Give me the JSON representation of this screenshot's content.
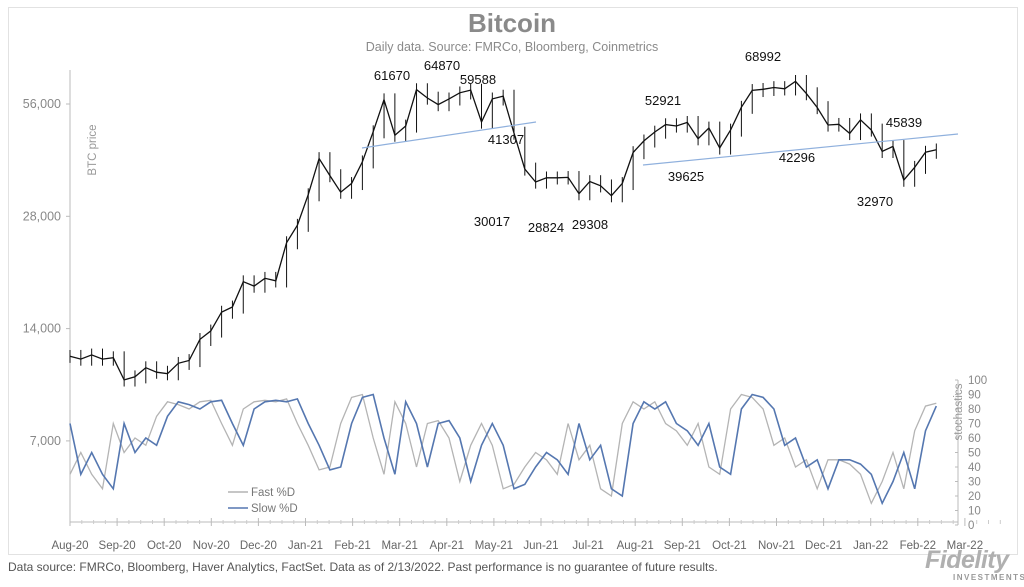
{
  "chart_data": {
    "type": "line",
    "title": "Bitcoin",
    "subtitle": "Daily data.  Source: FMRCo, Bloomberg, Coinmetrics",
    "ylabel": "BTC price",
    "y2label": "stochastics",
    "yscale": "log2",
    "yticks": [
      "56,000",
      "28,000",
      "14,000",
      "7,000"
    ],
    "ytick_values": [
      56000,
      28000,
      14000,
      7000
    ],
    "y2ticks": [
      0,
      10,
      20,
      30,
      40,
      50,
      60,
      70,
      80,
      90,
      100
    ],
    "y2lim": [
      0,
      100
    ],
    "xticks": [
      "Aug-20",
      "Sep-20",
      "Oct-20",
      "Nov-20",
      "Dec-20",
      "Jan-21",
      "Feb-21",
      "Mar-21",
      "Apr-21",
      "May-21",
      "Jun-21",
      "Jul-21",
      "Aug-21",
      "Sep-21",
      "Oct-21",
      "Nov-21",
      "Dec-21",
      "Jan-22",
      "Feb-22",
      "Mar-22"
    ],
    "x": [
      "2020-08-01",
      "2020-08-08",
      "2020-08-15",
      "2020-08-22",
      "2020-08-29",
      "2020-09-05",
      "2020-09-12",
      "2020-09-19",
      "2020-09-26",
      "2020-10-03",
      "2020-10-10",
      "2020-10-17",
      "2020-10-24",
      "2020-10-31",
      "2020-11-07",
      "2020-11-14",
      "2020-11-21",
      "2020-11-28",
      "2020-12-05",
      "2020-12-12",
      "2020-12-19",
      "2020-12-26",
      "2021-01-02",
      "2021-01-09",
      "2021-01-16",
      "2021-01-23",
      "2021-01-30",
      "2021-02-06",
      "2021-02-13",
      "2021-02-20",
      "2021-02-27",
      "2021-03-06",
      "2021-03-13",
      "2021-03-20",
      "2021-03-27",
      "2021-04-03",
      "2021-04-10",
      "2021-04-17",
      "2021-04-24",
      "2021-05-01",
      "2021-05-08",
      "2021-05-15",
      "2021-05-22",
      "2021-05-29",
      "2021-06-05",
      "2021-06-12",
      "2021-06-19",
      "2021-06-26",
      "2021-07-03",
      "2021-07-10",
      "2021-07-17",
      "2021-07-24",
      "2021-07-31",
      "2021-08-07",
      "2021-08-14",
      "2021-08-21",
      "2021-08-28",
      "2021-09-04",
      "2021-09-11",
      "2021-09-18",
      "2021-09-25",
      "2021-10-02",
      "2021-10-09",
      "2021-10-16",
      "2021-10-23",
      "2021-10-30",
      "2021-11-06",
      "2021-11-13",
      "2021-11-20",
      "2021-11-27",
      "2021-12-04",
      "2021-12-11",
      "2021-12-18",
      "2021-12-25",
      "2022-01-01",
      "2022-01-08",
      "2022-01-15",
      "2022-01-22",
      "2022-01-29",
      "2022-02-05",
      "2022-02-12"
    ],
    "series": [
      {
        "key": "price",
        "values": [
          11800,
          11600,
          11900,
          11600,
          11700,
          10200,
          10400,
          11000,
          10700,
          10600,
          11300,
          11500,
          13100,
          13800,
          15500,
          16000,
          18700,
          18200,
          19100,
          18800,
          23800,
          26500,
          32000,
          40000,
          36000,
          32500,
          34300,
          39200,
          47200,
          57500,
          46200,
          48900,
          61200,
          58100,
          55800,
          57800,
          60000,
          61000,
          50100,
          57800,
          58800,
          46800,
          37500,
          34600,
          35500,
          35500,
          35600,
          32200,
          34700,
          33800,
          31800,
          34300,
          41500,
          44600,
          47100,
          49300,
          48900,
          50000,
          45200,
          48300,
          42700,
          47700,
          54900,
          60900,
          61300,
          62000,
          61500,
          64400,
          59700,
          54800,
          49200,
          49400,
          46700,
          50800,
          47700,
          41800,
          43100,
          35000,
          37900,
          41600,
          42200
        ],
        "color": "#111111"
      },
      {
        "key": "fast",
        "name": "Fast %D",
        "values": [
          35,
          50,
          35,
          25,
          70,
          50,
          60,
          55,
          75,
          85,
          83,
          80,
          85,
          86,
          70,
          55,
          80,
          85,
          86,
          85,
          87,
          70,
          55,
          38,
          40,
          70,
          88,
          90,
          60,
          35,
          85,
          70,
          40,
          70,
          72,
          60,
          30,
          55,
          70,
          55,
          25,
          28,
          40,
          50,
          45,
          35,
          70,
          45,
          55,
          25,
          20,
          70,
          85,
          80,
          85,
          70,
          65,
          55,
          70,
          40,
          35,
          80,
          90,
          88,
          80,
          55,
          60,
          40,
          45,
          25,
          45,
          45,
          42,
          35,
          15,
          30,
          50,
          25,
          65,
          82,
          84
        ],
        "color": "#b4b4b4"
      },
      {
        "key": "slow",
        "name": "Slow %D",
        "values": [
          70,
          35,
          50,
          35,
          25,
          70,
          50,
          60,
          55,
          75,
          85,
          83,
          80,
          85,
          86,
          70,
          55,
          80,
          85,
          86,
          85,
          87,
          70,
          55,
          38,
          40,
          70,
          88,
          90,
          60,
          35,
          85,
          70,
          40,
          70,
          72,
          60,
          30,
          55,
          70,
          55,
          25,
          28,
          40,
          50,
          45,
          35,
          70,
          45,
          55,
          25,
          20,
          70,
          85,
          80,
          85,
          70,
          65,
          55,
          70,
          40,
          35,
          80,
          90,
          88,
          80,
          55,
          60,
          40,
          45,
          25,
          45,
          45,
          42,
          35,
          15,
          30,
          50,
          25,
          65,
          82
        ],
        "color": "#5577b0"
      }
    ],
    "annotations": [
      "61670",
      "64870",
      "59588",
      "41307",
      "30017",
      "28824",
      "29308",
      "52921",
      "39625",
      "68992",
      "42296",
      "45839",
      "32970"
    ],
    "trendline_color": "#8fb0dd",
    "legend": "bottom-left",
    "grid": false
  },
  "footer": "Data source: FMRCo, Bloomberg, Haver Analytics, FactSet. Data as of 2/13/2022. Past performance is no guarantee of future results.",
  "logo": {
    "text": "Fidelity",
    "sub": "INVESTMENTS"
  }
}
